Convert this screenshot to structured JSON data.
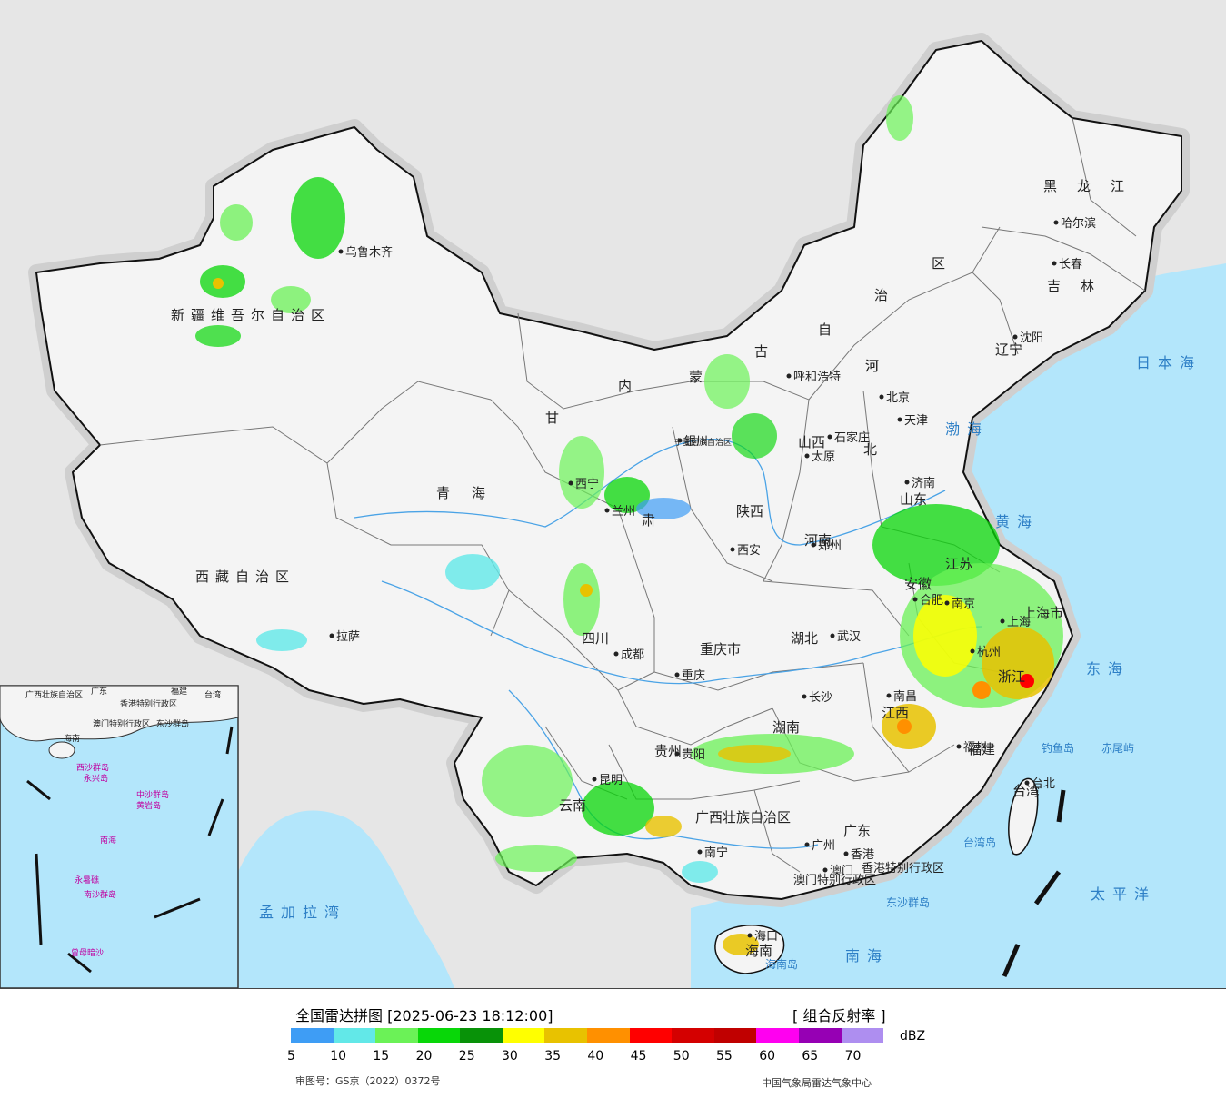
{
  "legend": {
    "title": "全国雷达拼图 [2025-06-23 18:12:00]",
    "product": "[ 组合反射率 ]",
    "unit": "dBZ",
    "approval": "审图号：GS京（2022）0372号",
    "source": "中国气象局雷达气象中心",
    "ticks": [
      "5",
      "10",
      "15",
      "20",
      "25",
      "30",
      "35",
      "40",
      "45",
      "50",
      "55",
      "60",
      "65",
      "70"
    ],
    "colors": [
      "#3e9df5",
      "#62e8e8",
      "#6bf257",
      "#08d708",
      "#089208",
      "#ffff00",
      "#e8c200",
      "#ff9000",
      "#ff0000",
      "#d40000",
      "#c00000",
      "#ff00f0",
      "#9600b4",
      "#ae8ef0"
    ]
  },
  "colors": {
    "sea": "#b3e6fb",
    "land_china": "#f4f4f4",
    "land_foreign": "#e6e6e6",
    "border": "#111111",
    "province_line": "#777777",
    "river": "#4aa3e6"
  },
  "map": {
    "provinces": [
      "新疆维吾尔自治区",
      "西藏自治区",
      "青海",
      "甘肃",
      "内蒙古自治区",
      "黑龙江",
      "吉林",
      "辽宁",
      "河北",
      "山西",
      "陕西",
      "宁夏回族自治区",
      "山东",
      "河南",
      "江苏",
      "安徽",
      "湖北",
      "四川",
      "重庆市",
      "贵州",
      "云南",
      "湖南",
      "江西",
      "浙江",
      "福建",
      "广西壮族自治区",
      "广东",
      "海南",
      "台湾",
      "上海市",
      "北京",
      "天津"
    ],
    "cities": [
      "乌鲁木齐",
      "拉萨",
      "西宁",
      "兰州",
      "银川",
      "呼和浩特",
      "北京",
      "天津",
      "石家庄",
      "太原",
      "济南",
      "郑州",
      "西安",
      "合肥",
      "南京",
      "上海",
      "杭州",
      "武汉",
      "成都",
      "重庆",
      "长沙",
      "南昌",
      "福州",
      "台北",
      "贵阳",
      "昆明",
      "南宁",
      "广州",
      "香港",
      "澳门",
      "海口",
      "哈尔滨",
      "长春",
      "沈阳"
    ],
    "seas": [
      "日本海",
      "渤海",
      "黄海",
      "东海",
      "太平洋",
      "南海",
      "孟加拉湾"
    ],
    "islands": [
      "钓鱼岛",
      "赤尾屿",
      "台湾岛",
      "海南岛",
      "东沙群岛"
    ],
    "special_regions": [
      "香港特别行政区",
      "澳门特别行政区"
    ],
    "inset": {
      "labels": [
        "广西壮族自治区",
        "广东",
        "福建",
        "台湾",
        "香港特别行政区",
        "澳门特别行政区",
        "东沙群岛",
        "海南",
        "西沙群岛",
        "永兴岛",
        "中沙群岛",
        "黄岩岛",
        "南海",
        "永暑礁",
        "南沙群岛",
        "曾母暗沙"
      ]
    }
  }
}
